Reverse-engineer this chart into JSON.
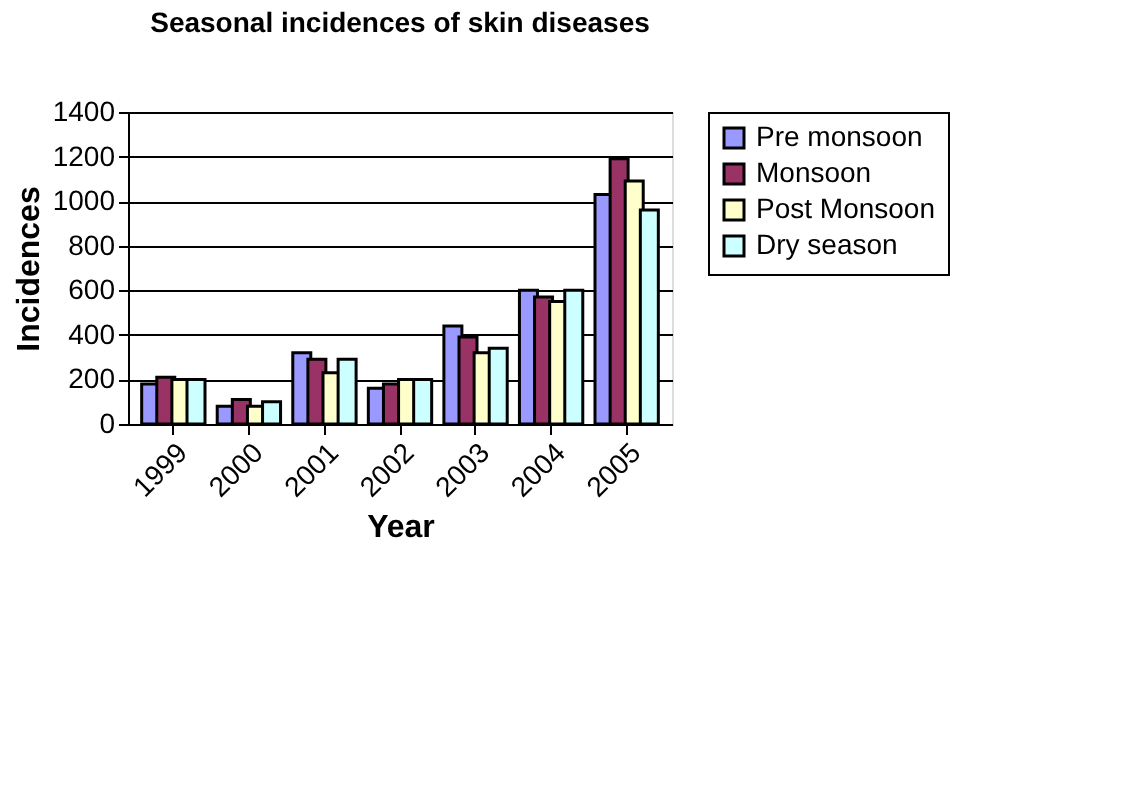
{
  "chart_data": {
    "type": "bar",
    "title": "Seasonal incidences of skin diseases",
    "xlabel": "Year",
    "ylabel": "Incidences",
    "categories": [
      "1999",
      "2000",
      "2001",
      "2002",
      "2003",
      "2004",
      "2005"
    ],
    "series": [
      {
        "name": "Pre monsoon",
        "color": "#9999ff",
        "values": [
          180,
          80,
          320,
          160,
          440,
          600,
          1030
        ]
      },
      {
        "name": "Monsoon",
        "color": "#993366",
        "values": [
          210,
          110,
          290,
          180,
          390,
          570,
          1190
        ]
      },
      {
        "name": "Post Monsoon",
        "color": "#ffffcc",
        "values": [
          200,
          80,
          230,
          200,
          320,
          550,
          1090
        ]
      },
      {
        "name": "Dry season",
        "color": "#ccffff",
        "values": [
          200,
          100,
          290,
          200,
          340,
          600,
          960
        ]
      }
    ],
    "ylim": [
      0,
      1400
    ],
    "yticks": [
      0,
      200,
      400,
      600,
      800,
      1000,
      1200,
      1400
    ],
    "grid": "y",
    "legend": "right"
  }
}
